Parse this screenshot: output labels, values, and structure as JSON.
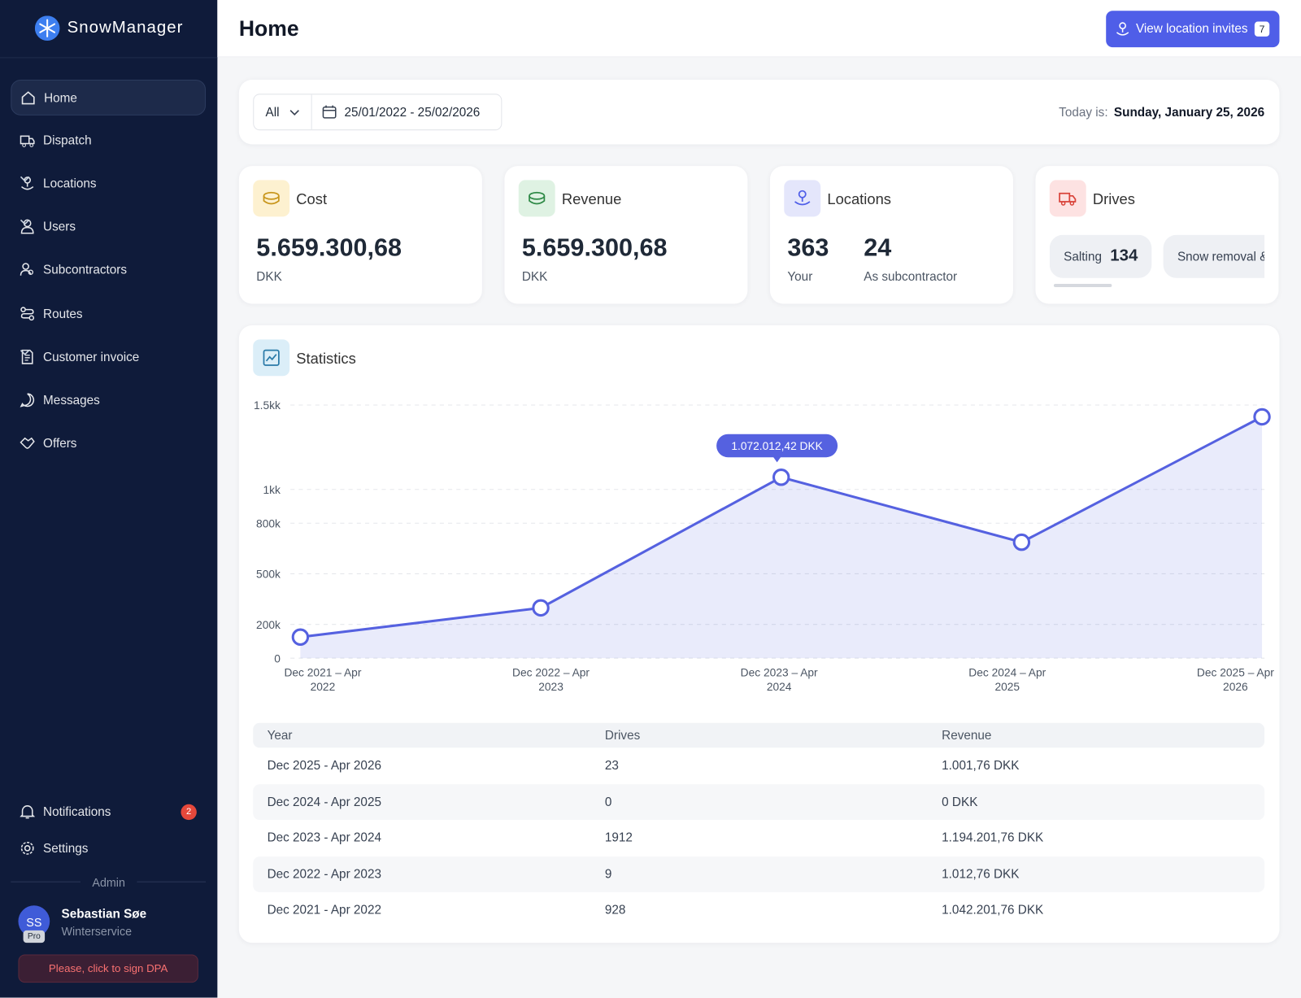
{
  "sidebar": {
    "brand": "SnowManager",
    "nav": [
      "Home",
      "Dispatch",
      "Locations",
      "Users",
      "Subcontractors",
      "Routes",
      "Customer invoice",
      "Messages",
      "Offers"
    ],
    "notifications": "Notifications",
    "notifications_count": "2",
    "settings": "Settings",
    "role": "Admin",
    "user": {
      "initials": "SS",
      "badge": "Pro",
      "name": "Sebastian Søe",
      "company": "Winterservice"
    },
    "dpa": "Please, click to sign DPA"
  },
  "header": {
    "title": "Home",
    "invites_button": "View location invites",
    "invites_count": "7"
  },
  "filters": {
    "scope": "All",
    "date_range": "25/01/2022 - 25/02/2026",
    "today_label": "Today is:",
    "today": "Sunday, January 25, 2026"
  },
  "cards": {
    "cost": {
      "title": "Cost",
      "value": "5.659.300,68",
      "unit": "DKK"
    },
    "revenue": {
      "title": "Revenue",
      "value": "5.659.300,68",
      "unit": "DKK"
    },
    "locations": {
      "title": "Locations",
      "own": "363",
      "own_label": "Your",
      "sub": "24",
      "sub_label": "As subcontractor"
    },
    "drives": {
      "title": "Drives",
      "chips": [
        {
          "label": "Salting",
          "count": "134"
        },
        {
          "label": "Snow removal &"
        }
      ]
    }
  },
  "statistics": {
    "title": "Statistics",
    "table": {
      "columns": [
        "Year",
        "Drives",
        "Revenue"
      ],
      "rows": [
        [
          "Dec 2025 - Apr 2026",
          "23",
          "1.001,76 DKK"
        ],
        [
          "Dec 2024 - Apr 2025",
          "0",
          "0 DKK"
        ],
        [
          "Dec 2023 - Apr 2024",
          "1912",
          "1.194.201,76 DKK"
        ],
        [
          "Dec 2022 - Apr 2023",
          "9",
          "1.012,76 DKK"
        ],
        [
          "Dec 2021 - Apr 2022",
          "928",
          "1.042.201,76 DKK"
        ]
      ]
    }
  },
  "chart_data": {
    "type": "line",
    "categories": [
      "Dec 2021 – Apr 2022",
      "Dec 2022 – Apr 2023",
      "Dec 2023 – Apr 2024",
      "Dec 2024 – Apr 2025",
      "Dec 2025 – Apr 2026"
    ],
    "values": [
      125000,
      298000,
      1072012.42,
      687000,
      1430000
    ],
    "value_labels": [
      null,
      null,
      "1.072.012,42 DKK",
      null,
      null
    ],
    "color": "#5561e0",
    "area": true,
    "grid": true,
    "ylim": [
      0,
      1500000
    ],
    "yticks": [
      0,
      {
        "value": 200000,
        "label": "200k"
      },
      {
        "value": 500000,
        "label": "500k"
      },
      {
        "value": 800000,
        "label": "800k"
      },
      {
        "value": 1000000,
        "label": "1kk"
      },
      {
        "value": 1500000,
        "label": "1.5kk"
      }
    ]
  }
}
